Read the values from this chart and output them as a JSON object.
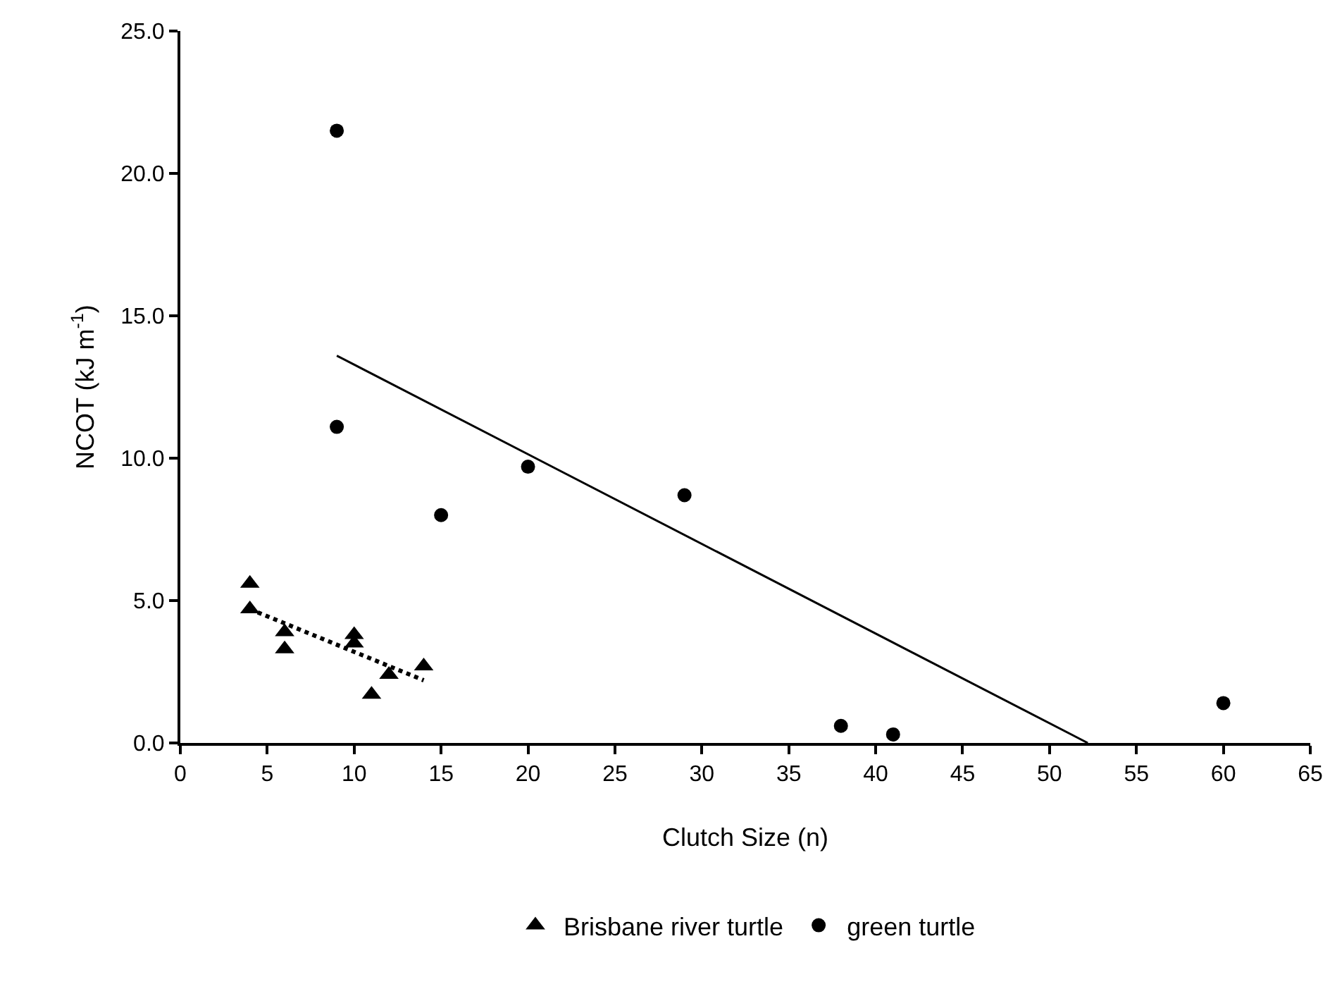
{
  "chart_data": {
    "type": "scatter",
    "xlabel": "Clutch Size (n)",
    "ylabel": "NCOT (kJ m$^{-1}$)",
    "xlim": [
      0,
      65
    ],
    "xticks": [
      0,
      5,
      10,
      15,
      20,
      25,
      30,
      35,
      40,
      45,
      50,
      55,
      60,
      65
    ],
    "ylim": [
      0,
      25
    ],
    "yticks": [
      {
        "value": 0,
        "label": "0.0"
      },
      {
        "value": 5,
        "label": "5.0"
      },
      {
        "value": 10,
        "label": "10.0"
      },
      {
        "value": 15,
        "label": "15.0"
      },
      {
        "value": 20,
        "label": "20.0"
      },
      {
        "value": 25,
        "label": "25.0"
      }
    ],
    "grid": false,
    "legend": "bottom",
    "series": [
      {
        "name": "Brisbane river turtle",
        "type": "scatter",
        "marker": "triangle",
        "color": "#000000",
        "x": [
          4,
          4,
          6,
          6,
          10,
          10,
          11,
          12,
          14
        ],
        "values": [
          5.6,
          4.7,
          3.9,
          3.3,
          3.8,
          3.5,
          1.7,
          2.4,
          2.7
        ]
      },
      {
        "name": "green turtle",
        "type": "scatter",
        "marker": "circle",
        "color": "#000000",
        "x": [
          9,
          9,
          15,
          20,
          29,
          38,
          41,
          60
        ],
        "values": [
          21.5,
          11.1,
          8.0,
          9.7,
          8.7,
          0.6,
          0.3,
          1.4
        ]
      },
      {
        "type": "line",
        "line_style": "dotted",
        "color": "#000000",
        "x": [
          4,
          14
        ],
        "values": [
          4.7,
          2.2
        ]
      },
      {
        "type": "line",
        "line_style": "solid",
        "color": "#000000",
        "x": [
          9,
          52.2
        ],
        "values": [
          13.6,
          0
        ]
      }
    ]
  }
}
